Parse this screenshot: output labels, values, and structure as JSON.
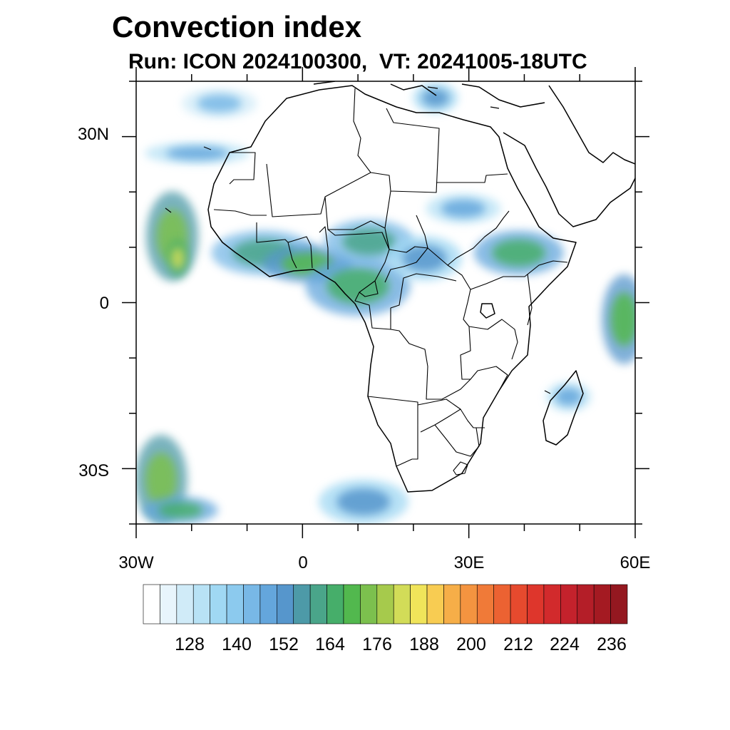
{
  "title": "Convection index",
  "subtitle": "Run: ICON 2024100300,  VT: 20241005-18UTC",
  "axes": {
    "lat_ticks": [
      {
        "label": "30N",
        "lat": 30
      },
      {
        "label": "0",
        "lat": 0
      },
      {
        "label": "30S",
        "lat": -30
      }
    ],
    "lon_ticks": [
      {
        "label": "30W",
        "lon": -30
      },
      {
        "label": "0",
        "lon": 0
      },
      {
        "label": "30E",
        "lon": 30
      },
      {
        "label": "60E",
        "lon": 60
      }
    ],
    "lat_range": [
      -40,
      40
    ],
    "lon_range": [
      -30,
      60
    ]
  },
  "colorbar": {
    "labels": [
      "128",
      "140",
      "152",
      "164",
      "176",
      "188",
      "200",
      "212",
      "224",
      "236"
    ],
    "colors": [
      "#ffffff",
      "#e8f5fc",
      "#d0ebf8",
      "#b8e2f5",
      "#a0d8f3",
      "#8ccaee",
      "#78b8e6",
      "#64a6dc",
      "#5696cc",
      "#4d9aa8",
      "#4aa58a",
      "#46ae6a",
      "#52b84e",
      "#7cc04e",
      "#a6ca4c",
      "#d2dc58",
      "#f0e45a",
      "#f8cc52",
      "#f6ae48",
      "#f49440",
      "#f07a38",
      "#ec6232",
      "#e64a2e",
      "#de362c",
      "#d22a2c",
      "#c4222c",
      "#b41e28",
      "#a41a22",
      "#941820"
    ]
  },
  "chart_data": {
    "type": "heatmap",
    "title": "Convection index",
    "subtitle": "Run: ICON 2024100300,  VT: 20241005-18UTC",
    "xlim": [
      -30,
      60
    ],
    "ylim": [
      -40,
      40
    ],
    "xticks": [
      "30W",
      "0",
      "30E",
      "60E"
    ],
    "yticks": [
      "30N",
      "0",
      "30S"
    ],
    "colorbar_levels": [
      128,
      140,
      152,
      164,
      176,
      188,
      200,
      212,
      224,
      236
    ],
    "regions": [
      {
        "lon": -23.5,
        "lat": 12,
        "rx": 3.5,
        "ry": 6,
        "value": 180
      },
      {
        "lon": -22.5,
        "lat": 8,
        "rx": 1.5,
        "ry": 2.5,
        "value": 192
      },
      {
        "lon": -7,
        "lat": 9,
        "rx": 7,
        "ry": 3,
        "value": 160
      },
      {
        "lon": 1,
        "lat": 7,
        "rx": 6,
        "ry": 2.5,
        "value": 170
      },
      {
        "lon": 10,
        "lat": 3,
        "rx": 7,
        "ry": 4,
        "value": 166
      },
      {
        "lon": 12,
        "lat": 11,
        "rx": 6,
        "ry": 3,
        "value": 160
      },
      {
        "lon": 22,
        "lat": 8,
        "rx": 5,
        "ry": 3,
        "value": 150
      },
      {
        "lon": 39,
        "lat": 9,
        "rx": 6,
        "ry": 3,
        "value": 166
      },
      {
        "lon": 29,
        "lat": 17,
        "rx": 5,
        "ry": 2,
        "value": 140
      },
      {
        "lon": 58,
        "lat": -3,
        "rx": 3,
        "ry": 6,
        "value": 170
      },
      {
        "lon": 48,
        "lat": -17,
        "rx": 3,
        "ry": 2,
        "value": 145
      },
      {
        "lon": -25.5,
        "lat": -32,
        "rx": 3.5,
        "ry": 6,
        "value": 176
      },
      {
        "lon": -22,
        "lat": -37.5,
        "rx": 5,
        "ry": 1.8,
        "value": 164
      },
      {
        "lon": 11,
        "lat": -36,
        "rx": 6,
        "ry": 3,
        "value": 148
      },
      {
        "lon": -19,
        "lat": 27,
        "rx": 7,
        "ry": 1.5,
        "value": 140
      },
      {
        "lon": -15,
        "lat": 36,
        "rx": 5,
        "ry": 2,
        "value": 135
      },
      {
        "lon": 24,
        "lat": 37,
        "rx": 3,
        "ry": 2,
        "value": 150
      }
    ]
  }
}
